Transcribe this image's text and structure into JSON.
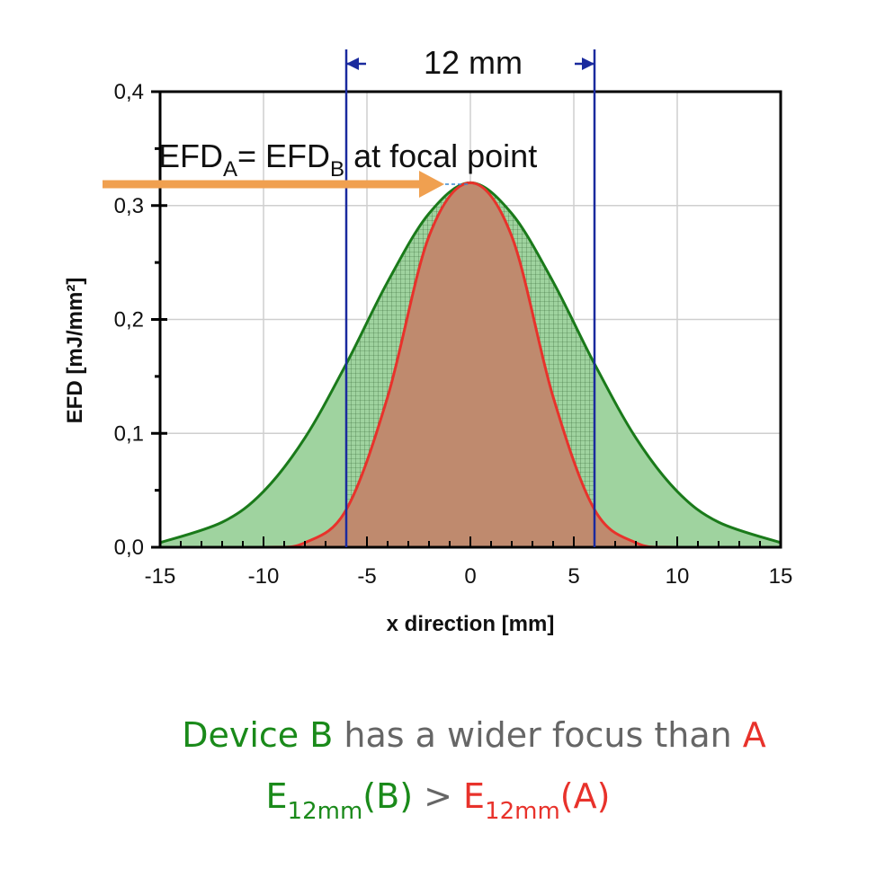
{
  "chart_data": {
    "type": "area",
    "xlabel": "x direction [mm]",
    "ylabel": "EFD [mJ/mm²]",
    "xlim": [
      -15,
      15
    ],
    "ylim": [
      0,
      0.4
    ],
    "x_ticks": [
      "-15",
      "-10",
      "-5",
      "0",
      "5",
      "10",
      "15"
    ],
    "y_ticks": [
      "0,0",
      "0,1",
      "0,2",
      "0,3",
      "0,4"
    ],
    "grid": true,
    "series": [
      {
        "name": "B",
        "color": "#1a7a1a",
        "fill": "#9fd39f",
        "x": [
          -15,
          -12,
          -10,
          -8,
          -6,
          -4,
          -2,
          0,
          2,
          4,
          6,
          8,
          10,
          12,
          15
        ],
        "y": [
          0.004,
          0.022,
          0.049,
          0.096,
          0.161,
          0.233,
          0.293,
          0.32,
          0.293,
          0.233,
          0.161,
          0.096,
          0.049,
          0.022,
          0.004
        ]
      },
      {
        "name": "A",
        "color": "#e8322b",
        "fill": "#bf8a6e",
        "x": [
          -15,
          -10,
          -8,
          -6,
          -4,
          -2,
          0,
          2,
          4,
          6,
          8,
          10,
          15
        ],
        "y": [
          0.0,
          0.0,
          0.004,
          0.033,
          0.132,
          0.273,
          0.32,
          0.273,
          0.132,
          0.033,
          0.004,
          0.0,
          0.0
        ]
      }
    ],
    "markers": {
      "left_mm": -6,
      "right_mm": 6,
      "width_label": "12 mm",
      "color": "#1a2a9e"
    },
    "annotation": {
      "text_part1": "EFD",
      "sub1": "A",
      "text_part2": "= EFD",
      "sub2": "B",
      "text_part3": " at focal point",
      "arrow_color": "#f0a050"
    }
  },
  "caption": {
    "line1_green": "Device B",
    "line1_gray": " has a wider focus than ",
    "line1_red": "A",
    "line2_E1": "E",
    "line2_sub1": "12mm",
    "line2_B": "(B)",
    "line2_gt": " > ",
    "line2_E2": "E",
    "line2_sub2": "12mm",
    "line2_A": "(A)",
    "green": "#1a8a1a",
    "red": "#e8322b",
    "gray": "#666666"
  }
}
